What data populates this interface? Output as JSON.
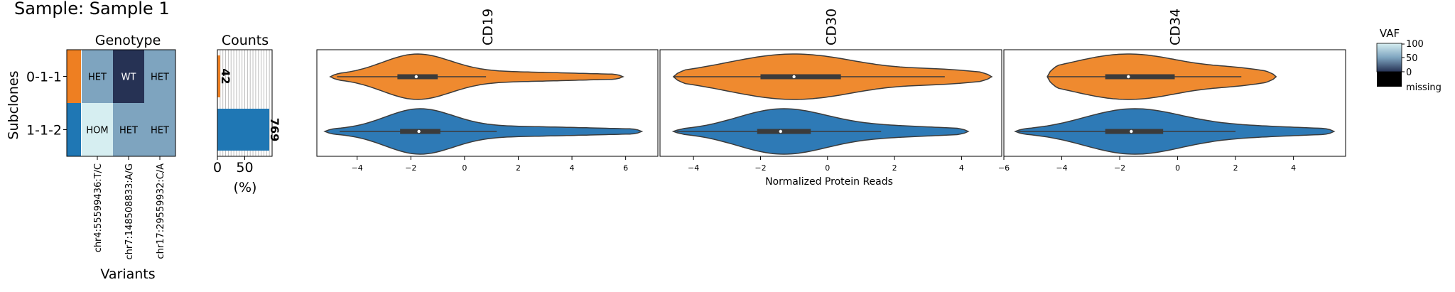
{
  "page_title": "Sample: Sample 1",
  "colors": {
    "clone_orange": "#ee7f22",
    "clone_blue": "#1f77b4",
    "violin_orange": "#ef8a2f",
    "violin_blue": "#2e7ab6",
    "het": "#7ea4bf",
    "wt": "#263254",
    "hom": "#d6eef1",
    "hom_dark": "#aed7e0"
  },
  "chart_data": [
    {
      "type": "heatmap",
      "title": "Genotype",
      "ylabel": "Subclones",
      "xlabel": "Variants",
      "rows": [
        "0-1-1",
        "1-1-2"
      ],
      "columns": [
        "chr4:55599436:T/C",
        "chr7:148508833:A/G",
        "chr17:29559932:C/A"
      ],
      "cells": [
        [
          "HET",
          "WT",
          "HET"
        ],
        [
          "HOM",
          "HET",
          "HET"
        ]
      ],
      "row_colors": [
        "#ee7f22",
        "#1f77b4"
      ]
    },
    {
      "type": "bar",
      "orientation": "horizontal",
      "title": "Counts",
      "xlabel": "(%)",
      "xticks": [
        "0",
        "50"
      ],
      "xlim": [
        0,
        100
      ],
      "categories": [
        "0-1-1",
        "1-1-2"
      ],
      "values_percent": [
        5.2,
        94.8
      ],
      "bar_labels": [
        "42",
        "769"
      ]
    },
    {
      "type": "violin",
      "panels": [
        {
          "title": "CD19",
          "xticks": [
            -4,
            -2,
            0,
            2,
            4,
            6
          ],
          "xlim": [
            -5.5,
            7.2
          ],
          "series": [
            {
              "name": "0-1-1",
              "min": -5.0,
              "q1": -2.5,
              "median": -1.8,
              "q3": -1.0,
              "whisker_high": 0.8,
              "max": 5.9
            },
            {
              "name": "1-1-2",
              "min": -5.2,
              "q1": -2.4,
              "median": -1.7,
              "q3": -0.9,
              "whisker_high": 1.2,
              "max": 6.6
            }
          ]
        },
        {
          "title": "CD30",
          "xticks": [
            -4,
            -2,
            0,
            2,
            4
          ],
          "xlim": [
            -5.0,
            5.2
          ],
          "series": [
            {
              "name": "0-1-1",
              "min": -4.6,
              "q1": -2.0,
              "median": -1.0,
              "q3": 0.4,
              "whisker_high": 3.5,
              "max": 4.9
            },
            {
              "name": "1-1-2",
              "min": -4.6,
              "q1": -2.1,
              "median": -1.4,
              "q3": -0.5,
              "whisker_high": 1.6,
              "max": 4.2
            }
          ]
        },
        {
          "title": "CD34",
          "xticks": [
            -6,
            -4,
            -2,
            0,
            2,
            4
          ],
          "xlim": [
            -6.0,
            5.8
          ],
          "series": [
            {
              "name": "0-1-1",
              "min": -4.5,
              "q1": -2.5,
              "median": -1.7,
              "q3": -0.1,
              "whisker_high": 2.2,
              "max": 3.4
            },
            {
              "name": "1-1-2",
              "min": -5.6,
              "q1": -2.5,
              "median": -1.6,
              "q3": -0.5,
              "whisker_high": 2.0,
              "max": 5.4
            }
          ]
        }
      ],
      "xlabel": "Normalized Protein Reads"
    }
  ],
  "colorbar": {
    "title": "VAF",
    "ticks": [
      "100",
      "50",
      "0",
      "missing"
    ]
  }
}
